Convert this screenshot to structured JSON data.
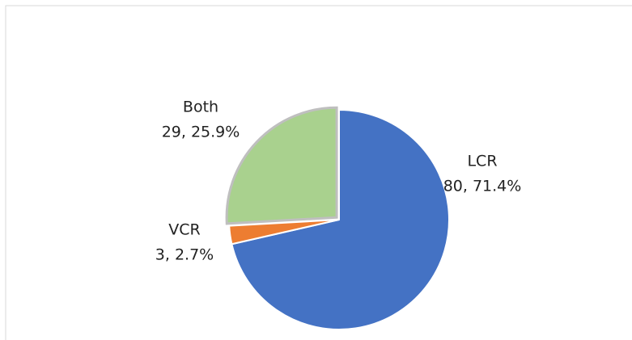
{
  "chart_data": {
    "type": "pie",
    "categories": [
      "LCR",
      "VCR",
      "Both"
    ],
    "values": [
      80,
      3,
      29
    ],
    "value_labels": [
      "80, 71.4%",
      "3, 2.7%",
      "29, 25.9%"
    ],
    "colors": [
      "#4472c4",
      "#ed7d31",
      "#a9d18e"
    ]
  }
}
